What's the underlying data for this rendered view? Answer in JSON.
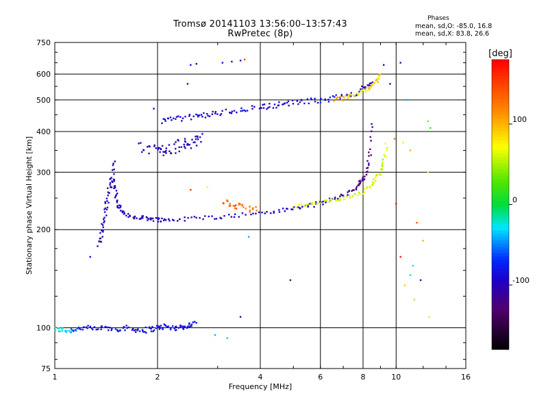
{
  "title": "Tromsø 20141103 13:56:00–13:57:43",
  "subtitle": "RwPretec (8p)",
  "stats": {
    "heading": "Phases",
    "o_line": "mean, sd,O: -85.0, 16.8",
    "x_line": "mean, sd,X:  83.8, 26.6"
  },
  "chart_data": {
    "type": "scatter",
    "xlabel": "Frequency [MHz]",
    "ylabel": "Stationary phase Virtual Height [km]",
    "x_scale": "log",
    "y_scale": "log",
    "xlim": [
      1,
      16
    ],
    "ylim": [
      75,
      750
    ],
    "x_ticks": [
      1,
      2,
      4,
      6,
      8,
      10,
      16
    ],
    "y_ticks": [
      75,
      100,
      200,
      300,
      400,
      500,
      600,
      750
    ],
    "x_grid": [
      2,
      4,
      6,
      8,
      10
    ],
    "y_grid": [
      100,
      200,
      300,
      400,
      500,
      600
    ],
    "grid": true,
    "colorbar": {
      "label": "[deg]",
      "range": [
        -180,
        180
      ],
      "ticks": [
        -100,
        0,
        100
      ],
      "placement": "right"
    },
    "traces": [
      {
        "x": [
          1.0,
          1.05,
          1.1,
          1.15,
          1.2,
          1.3,
          1.4,
          1.5,
          1.6,
          1.7,
          1.8,
          1.9,
          2.0,
          2.1,
          2.2,
          2.3,
          2.4,
          2.5,
          2.6
        ],
        "y": [
          99,
          98.5,
          98,
          99,
          100,
          99,
          100,
          99,
          100,
          99,
          98,
          99,
          100,
          101,
          100,
          100,
          101,
          102,
          103
        ],
        "phase": [
          -20,
          -25,
          -40,
          -60,
          -75,
          -85,
          -90,
          -85,
          -90,
          -88,
          -85,
          -90,
          -85,
          -80,
          -85,
          -90,
          -88,
          -80,
          -70
        ],
        "scatter": 0.012
      },
      {
        "x": [
          1.35,
          1.37,
          1.39,
          1.41,
          1.43,
          1.45,
          1.47,
          1.5
        ],
        "y": [
          180,
          195,
          210,
          230,
          250,
          270,
          290,
          330
        ],
        "phase": [
          -100,
          -100,
          -100,
          -95,
          -100,
          -100,
          -95,
          -100
        ],
        "scatter": 0.01
      },
      {
        "x": [
          1.48,
          1.5,
          1.52,
          1.55,
          1.6,
          1.7,
          1.8,
          1.9,
          2.0,
          2.1,
          2.3,
          2.6,
          3.0,
          3.4,
          4.0,
          4.5,
          5.0,
          5.5,
          6.0,
          6.5,
          7.0,
          7.5,
          7.8,
          8.0,
          8.2,
          8.4,
          8.5
        ],
        "y": [
          290,
          265,
          245,
          232,
          222,
          219,
          218,
          216,
          215,
          214,
          215,
          217,
          219,
          221,
          225,
          228,
          232,
          236,
          241,
          248,
          255,
          265,
          275,
          285,
          305,
          345,
          440
        ],
        "phase": [
          -100,
          -100,
          -100,
          -100,
          -100,
          -100,
          -100,
          -100,
          -100,
          -100,
          -100,
          -100,
          -100,
          -100,
          -100,
          -100,
          -95,
          -95,
          -100,
          -105,
          -110,
          -120,
          -125,
          -125,
          -120,
          -120,
          -110
        ],
        "scatter": 0.009
      },
      {
        "x": [
          5.0,
          5.5,
          6.0,
          6.5,
          7.0,
          7.5,
          8.0,
          8.4,
          8.7,
          9.0,
          9.2,
          9.4
        ],
        "y": [
          235,
          238,
          242,
          245,
          250,
          255,
          262,
          272,
          285,
          300,
          325,
          370
        ],
        "phase": [
          70,
          60,
          55,
          65,
          60,
          55,
          60,
          65,
          70,
          60,
          55,
          70
        ],
        "scatter": 0.008
      },
      {
        "x": [
          3.1,
          3.3,
          3.5,
          3.7,
          3.9
        ],
        "y": [
          245,
          238,
          235,
          232,
          230
        ],
        "phase": [
          130,
          140,
          135,
          120,
          125
        ],
        "scatter": 0.014
      },
      {
        "x": [
          2.05,
          2.2,
          2.4,
          2.6,
          2.8,
          3.0,
          3.3,
          3.6,
          4.0,
          4.3,
          4.6,
          5.0,
          5.5,
          6.0,
          6.5,
          7.0,
          7.5,
          8.0,
          8.3,
          8.6
        ],
        "y": [
          432,
          435,
          440,
          445,
          450,
          455,
          462,
          468,
          475,
          480,
          485,
          490,
          495,
          500,
          505,
          512,
          522,
          538,
          550,
          570
        ],
        "phase": [
          -90,
          -90,
          -88,
          -90,
          -92,
          -95,
          -90,
          -88,
          -90,
          -92,
          -95,
          -90,
          -85,
          -80,
          -75,
          -70,
          -80,
          -100,
          -95,
          -90
        ],
        "scatter": 0.012
      },
      {
        "x": [
          6.6,
          7.0,
          7.4,
          7.8,
          8.2,
          8.5,
          8.8,
          9.0
        ],
        "y": [
          500,
          505,
          515,
          525,
          540,
          555,
          575,
          595
        ],
        "phase": [
          110,
          100,
          80,
          70,
          80,
          90,
          100,
          80
        ],
        "scatter": 0.01
      },
      {
        "x": [
          1.8,
          1.9,
          2.0,
          2.1,
          2.2,
          2.3,
          2.4,
          2.5,
          2.6,
          2.7
        ],
        "y": [
          360,
          355,
          350,
          352,
          355,
          360,
          365,
          370,
          375,
          380
        ],
        "phase": [
          -100,
          -100,
          -95,
          -100,
          -105,
          -95,
          -100,
          -100,
          -95,
          -100
        ],
        "scatter": 0.025
      }
    ],
    "scattered_points": [
      {
        "x": 2.5,
        "y": 640,
        "phase": -90
      },
      {
        "x": 2.6,
        "y": 645,
        "phase": -95
      },
      {
        "x": 3.1,
        "y": 650,
        "phase": -100
      },
      {
        "x": 3.3,
        "y": 655,
        "phase": -95
      },
      {
        "x": 3.5,
        "y": 660,
        "phase": -90
      },
      {
        "x": 3.6,
        "y": 665,
        "phase": 150
      },
      {
        "x": 2.45,
        "y": 560,
        "phase": -100
      },
      {
        "x": 1.95,
        "y": 470,
        "phase": -100
      },
      {
        "x": 1.27,
        "y": 165,
        "phase": -90
      },
      {
        "x": 4.9,
        "y": 140,
        "phase": -120
      },
      {
        "x": 2.8,
        "y": 270,
        "phase": 70
      },
      {
        "x": 2.5,
        "y": 265,
        "phase": 160
      },
      {
        "x": 3.7,
        "y": 190,
        "phase": -40
      },
      {
        "x": 2.95,
        "y": 95,
        "phase": -40
      },
      {
        "x": 3.2,
        "y": 93,
        "phase": -10
      },
      {
        "x": 3.5,
        "y": 108,
        "phase": -100
      },
      {
        "x": 9.2,
        "y": 640,
        "phase": -100
      },
      {
        "x": 10.3,
        "y": 650,
        "phase": -110
      },
      {
        "x": 9.6,
        "y": 560,
        "phase": -110
      },
      {
        "x": 10.7,
        "y": 500,
        "phase": -40
      },
      {
        "x": 9.9,
        "y": 380,
        "phase": 130
      },
      {
        "x": 10.5,
        "y": 370,
        "phase": 80
      },
      {
        "x": 11.0,
        "y": 350,
        "phase": 100
      },
      {
        "x": 10.0,
        "y": 240,
        "phase": 170
      },
      {
        "x": 11.5,
        "y": 210,
        "phase": 140
      },
      {
        "x": 12.0,
        "y": 185,
        "phase": 100
      },
      {
        "x": 10.3,
        "y": 165,
        "phase": 170
      },
      {
        "x": 11.2,
        "y": 155,
        "phase": -30
      },
      {
        "x": 11.0,
        "y": 145,
        "phase": -20
      },
      {
        "x": 11.8,
        "y": 140,
        "phase": -100
      },
      {
        "x": 10.6,
        "y": 135,
        "phase": 90
      },
      {
        "x": 11.3,
        "y": 122,
        "phase": 90
      },
      {
        "x": 12.5,
        "y": 108,
        "phase": 60
      },
      {
        "x": 12.4,
        "y": 300,
        "phase": 80
      },
      {
        "x": 12.4,
        "y": 430,
        "phase": 40
      },
      {
        "x": 12.6,
        "y": 410,
        "phase": 20
      }
    ]
  }
}
